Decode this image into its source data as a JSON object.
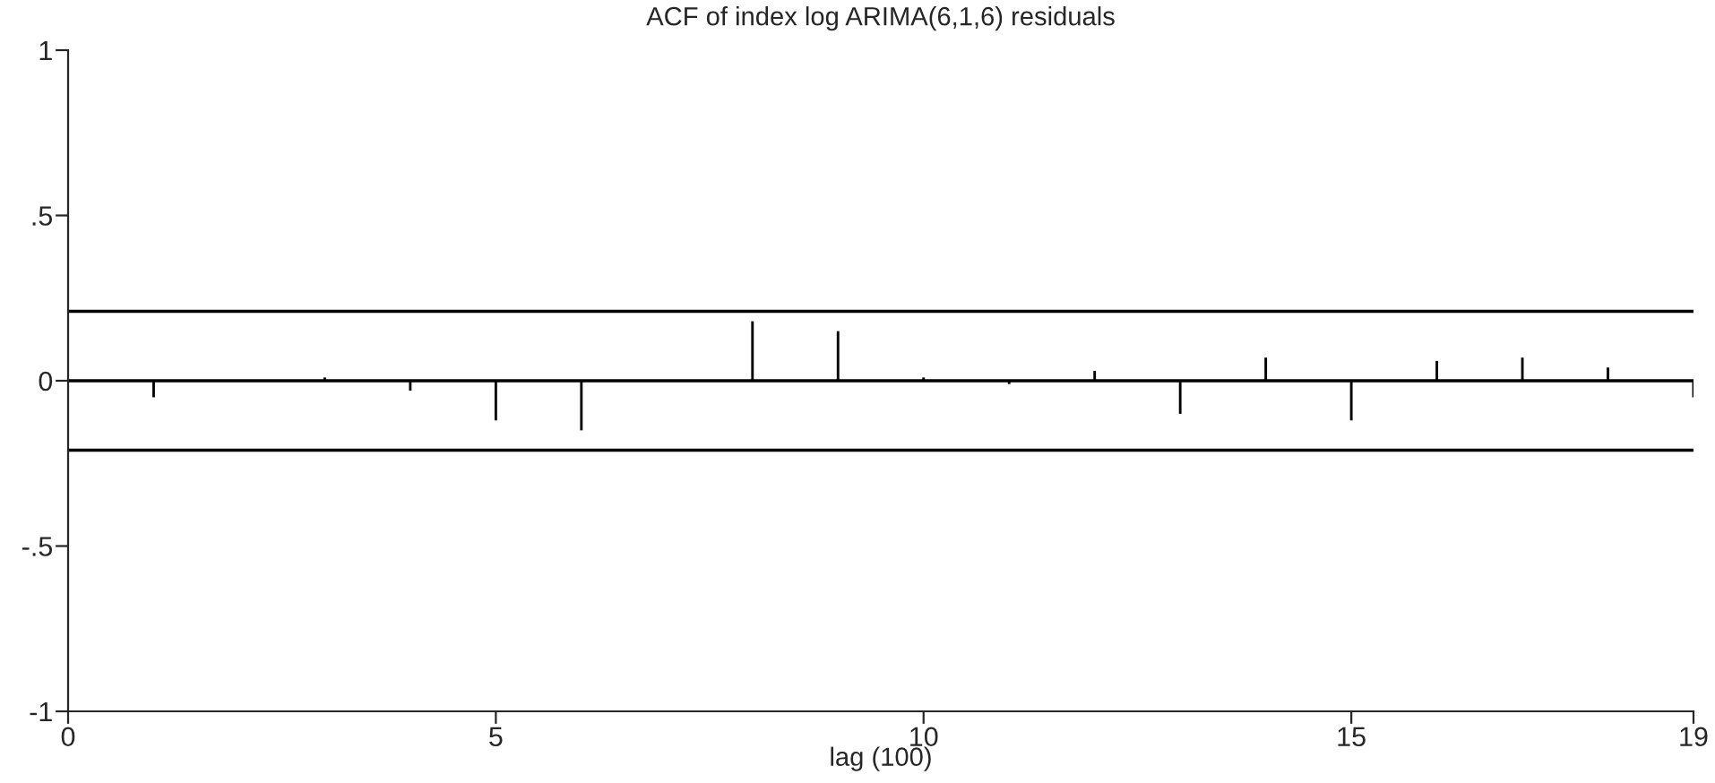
{
  "chart_data": {
    "type": "bar",
    "title": "ACF of index log ARIMA(6,1,6) residuals",
    "xlabel": "lag (100)",
    "x": [
      1,
      2,
      3,
      4,
      5,
      6,
      7,
      8,
      9,
      10,
      11,
      12,
      13,
      14,
      15,
      16,
      17,
      18,
      19
    ],
    "values": [
      -0.05,
      0,
      0.01,
      -0.03,
      -0.12,
      -0.15,
      0,
      0.18,
      0.15,
      0.01,
      -0.01,
      0.03,
      -0.1,
      0.07,
      -0.12,
      0.06,
      0.07,
      0.04,
      -0.05
    ],
    "color": "#000000",
    "xlim": [
      0,
      19
    ],
    "xticks": [
      0,
      5,
      10,
      15,
      19
    ],
    "ylim": [
      -1,
      1
    ],
    "yticks": [
      {
        "value": -1,
        "label": "-1"
      },
      {
        "value": -0.5,
        "label": "-.5"
      },
      {
        "value": 0,
        "label": "0"
      },
      {
        "value": 0.5,
        "label": ".5"
      },
      {
        "value": 1,
        "label": "1"
      }
    ],
    "ref_lines": [
      {
        "axis": "y",
        "value": 0.21,
        "color": "#000000"
      },
      {
        "axis": "y",
        "value": -0.21,
        "color": "#000000"
      },
      {
        "axis": "y",
        "value": 0,
        "color": "#000000"
      }
    ],
    "grid": false,
    "legend": false
  }
}
